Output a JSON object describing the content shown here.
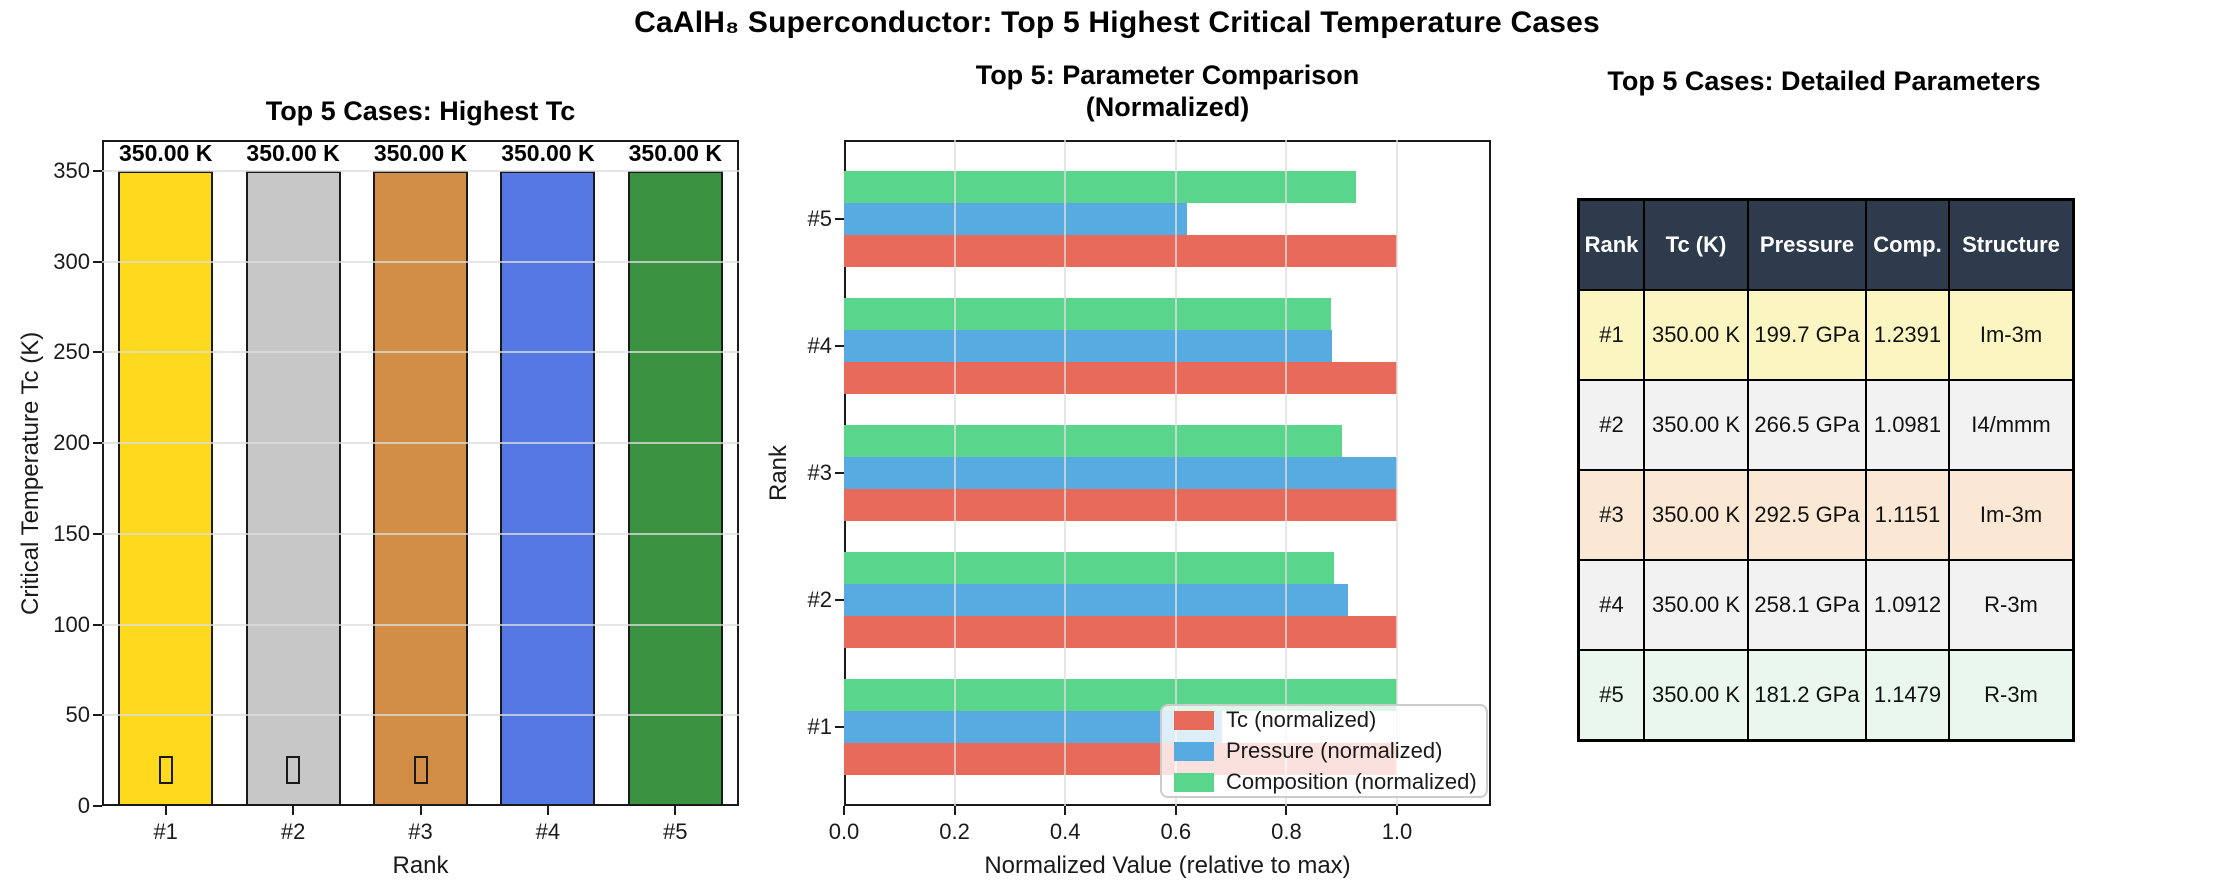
{
  "figure": {
    "title": "CaAlH₈ Superconductor: Top 5 Highest Critical Temperature Cases",
    "background": "#ffffff"
  },
  "chart_data": [
    {
      "type": "bar",
      "title": "Top 5 Cases: Highest Tc",
      "categories": [
        "#1",
        "#2",
        "#3",
        "#4",
        "#5"
      ],
      "values": [
        350,
        350,
        350,
        350,
        350
      ],
      "bar_labels": [
        "350.00 K",
        "350.00 K",
        "350.00 K",
        "350.00 K",
        "350.00 K"
      ],
      "bar_colors": [
        "#FFD91E",
        "#C7C7C7",
        "#D28D46",
        "#5578E4",
        "#3B9240"
      ],
      "missing_glyph_boxes": [
        true,
        true,
        true,
        false,
        false
      ],
      "xlabel": "Rank",
      "ylabel": "Critical Temperature Tc (K)",
      "yticks": [
        0,
        50,
        100,
        150,
        200,
        250,
        300,
        350
      ],
      "ylim": [
        0,
        367
      ],
      "grid": "horizontal"
    },
    {
      "type": "bar-horizontal-grouped",
      "title": "Top 5: Parameter Comparison\n(Normalized)",
      "title_lines": [
        "Top 5: Parameter Comparison",
        "(Normalized)"
      ],
      "categories": [
        "#1",
        "#2",
        "#3",
        "#4",
        "#5"
      ],
      "series": [
        {
          "name": "Tc (normalized)",
          "color": "#E86A5B",
          "values": [
            1.0,
            1.0,
            1.0,
            1.0,
            1.0
          ]
        },
        {
          "name": "Pressure (normalized)",
          "color": "#57ABE0",
          "values": [
            0.6827,
            0.9111,
            1.0,
            0.8824,
            0.6195
          ]
        },
        {
          "name": "Composition (normalized)",
          "color": "#5AD68C",
          "values": [
            1.0,
            0.8862,
            0.8999,
            0.8806,
            0.9264
          ]
        }
      ],
      "xlabel": "Normalized Value (relative to max)",
      "ylabel": "Rank",
      "xticks": [
        "0.0",
        "0.2",
        "0.4",
        "0.6",
        "0.8",
        "1.0"
      ],
      "xlim": [
        0,
        1.17
      ],
      "grid": "vertical",
      "legend_position": "lower right",
      "legend": [
        "Tc (normalized)",
        "Pressure (normalized)",
        "Composition (normalized)"
      ]
    },
    {
      "type": "table",
      "title": "Top 5 Cases: Detailed Parameters",
      "columns": [
        "Rank",
        "Tc (K)",
        "Pressure",
        "Comp.",
        "Structure"
      ],
      "rows": [
        [
          "#1",
          "350.00 K",
          "199.7 GPa",
          "1.2391",
          "Im-3m"
        ],
        [
          "#2",
          "350.00 K",
          "266.5 GPa",
          "1.0981",
          "I4/mmm"
        ],
        [
          "#3",
          "350.00 K",
          "292.5 GPa",
          "1.1151",
          "Im-3m"
        ],
        [
          "#4",
          "350.00 K",
          "258.1 GPa",
          "1.0912",
          "R-3m"
        ],
        [
          "#5",
          "350.00 K",
          "181.2 GPa",
          "1.1479",
          "R-3m"
        ]
      ],
      "header_bg": "#2E3B4D",
      "header_fg": "#FFFFFF",
      "row_colors": [
        "#FBF5C1",
        "#F2F2F2",
        "#FAE8D5",
        "#F2F2F2",
        "#E9F7EC"
      ]
    }
  ]
}
